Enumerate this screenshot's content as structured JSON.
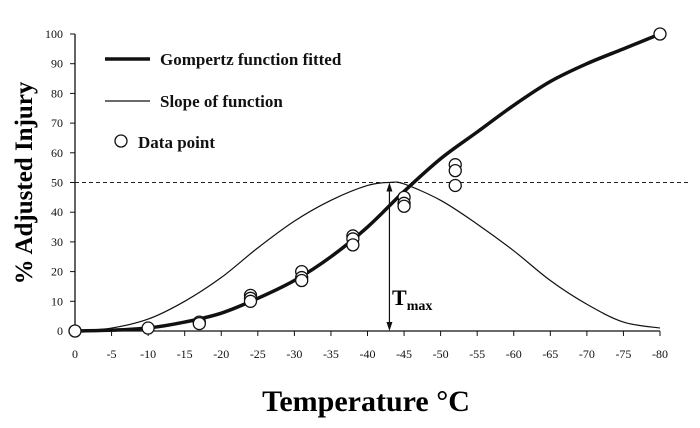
{
  "chart_data": {
    "type": "line",
    "xlabel": "Temperature °C",
    "ylabel": "% Adjusted Injury",
    "xlim": [
      0,
      -80
    ],
    "ylim": [
      0,
      100
    ],
    "xticks": [
      "0",
      "-5",
      "-10",
      "-15",
      "-20",
      "-25",
      "-30",
      "-35",
      "-40",
      "-45",
      "-50",
      "-55",
      "-60",
      "-65",
      "-70",
      "-75",
      "-80"
    ],
    "yticks": [
      "0",
      "10",
      "20",
      "30",
      "40",
      "50",
      "60",
      "70",
      "80",
      "90",
      "100"
    ],
    "grid": false,
    "legend_position": "top-left",
    "reference_line": {
      "y": 50,
      "style": "dashed"
    },
    "annotation": {
      "text": "T",
      "subscript": "max",
      "x": -43
    },
    "series": [
      {
        "name": "Gompertz function fitted",
        "style": "thick-line",
        "x": [
          0,
          -5,
          -10,
          -15,
          -20,
          -25,
          -30,
          -35,
          -40,
          -45,
          -50,
          -55,
          -60,
          -65,
          -70,
          -75,
          -80
        ],
        "y": [
          0,
          0.3,
          1,
          3,
          6,
          11,
          17,
          25,
          35,
          47,
          58,
          67,
          76,
          84,
          90,
          95,
          100
        ]
      },
      {
        "name": "Slope of function",
        "style": "thin-line",
        "x": [
          0,
          -5,
          -10,
          -15,
          -20,
          -25,
          -30,
          -35,
          -40,
          -43,
          -45,
          -50,
          -55,
          -60,
          -65,
          -70,
          -75,
          -80
        ],
        "y": [
          0,
          1,
          4,
          10,
          18,
          28,
          37,
          44,
          49,
          50,
          49.5,
          44,
          36,
          27,
          17,
          9,
          3,
          1
        ]
      },
      {
        "name": "Data point",
        "style": "open-circle",
        "x": [
          0,
          -10,
          -17,
          -17,
          -24,
          -24,
          -24,
          -31,
          -31,
          -31,
          -38,
          -38,
          -38,
          -45,
          -45,
          -45,
          -52,
          -52,
          -52,
          -80
        ],
        "y": [
          0,
          1,
          3,
          2.5,
          12,
          11,
          10,
          20,
          18,
          17,
          32,
          31,
          29,
          45,
          43,
          42,
          56,
          54,
          49,
          100
        ]
      }
    ]
  }
}
